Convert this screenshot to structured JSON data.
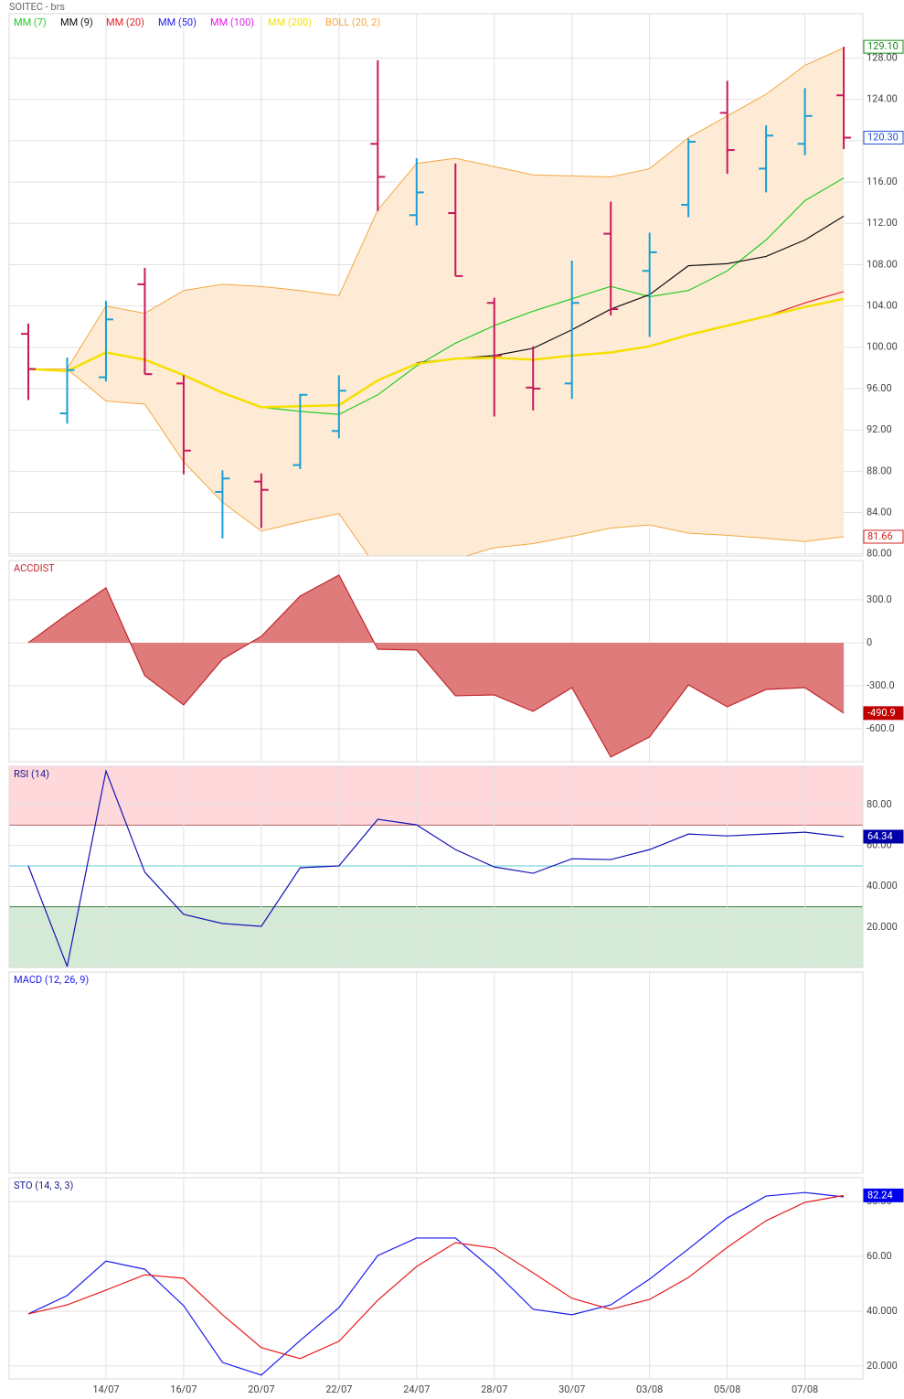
{
  "chart_data": [
    {
      "type": "ohlc",
      "title": "SOITEC - brs",
      "up_color": "#1a9fd0",
      "down_color": "#c8185a",
      "open": [
        101.3,
        93.6,
        97.1,
        106.1,
        96.5,
        86.0,
        87.0,
        88.6,
        91.9,
        119.7,
        112.8,
        113.0,
        104.3,
        96.1,
        96.5,
        111.0,
        107.4,
        113.8,
        122.7,
        117.3,
        119.7,
        124.4
      ],
      "high": [
        102.3,
        99.0,
        104.5,
        107.7,
        97.3,
        88.1,
        87.8,
        95.5,
        97.3,
        127.8,
        118.3,
        117.8,
        104.8,
        100.1,
        108.4,
        114.1,
        111.1,
        120.2,
        125.8,
        121.5,
        125.1,
        129.1
      ],
      "low": [
        94.9,
        92.6,
        96.7,
        97.4,
        87.7,
        81.5,
        82.5,
        88.2,
        91.2,
        113.2,
        111.8,
        106.9,
        93.3,
        93.9,
        95.0,
        103.1,
        101.0,
        112.6,
        116.8,
        115.0,
        118.6,
        119.2
      ],
      "close": [
        97.9,
        97.8,
        102.7,
        97.4,
        90.0,
        87.3,
        86.2,
        95.4,
        95.8,
        116.5,
        115.0,
        106.9,
        99.2,
        96.0,
        104.3,
        103.7,
        109.2,
        119.9,
        119.1,
        120.5,
        122.4,
        120.3
      ],
      "series": [
        {
          "name": "MM (7)",
          "color": "#22cc22",
          "values": [
            null,
            null,
            null,
            null,
            null,
            null,
            94.2,
            93.8,
            93.5,
            95.4,
            98.2,
            100.4,
            102.1,
            103.5,
            104.7,
            105.9,
            104.9,
            105.5,
            107.4,
            110.4,
            114.2,
            116.4
          ]
        },
        {
          "name": "MM (9)",
          "color": "#111111",
          "values": [
            null,
            null,
            null,
            null,
            null,
            null,
            null,
            null,
            null,
            null,
            98.5,
            98.9,
            99.2,
            99.9,
            101.7,
            103.7,
            105.1,
            107.9,
            108.1,
            108.8,
            110.4,
            112.7
          ]
        },
        {
          "name": "MM (20)",
          "color": "#e8202a",
          "values": [
            null,
            null,
            null,
            null,
            null,
            null,
            null,
            null,
            null,
            null,
            null,
            null,
            null,
            null,
            null,
            null,
            null,
            null,
            null,
            103.0,
            104.3,
            105.4
          ]
        },
        {
          "name": "MM (50)",
          "color": "#2222ee"
        },
        {
          "name": "MM (100)",
          "color": "#e020e0"
        },
        {
          "name": "MM (200)",
          "color": "#f5e000",
          "values": [
            97.9,
            97.7,
            99.5,
            98.8,
            97.3,
            95.6,
            94.2,
            94.3,
            94.4,
            96.8,
            98.4,
            98.9,
            99.0,
            98.8,
            99.2,
            99.5,
            100.1,
            101.2,
            102.1,
            103.0,
            103.9,
            104.7
          ]
        }
      ],
      "bands": {
        "name": "BOLL (20, 2)",
        "color": "#f4a742",
        "fill": "#fdebd6",
        "upper": [
          97.9,
          97.9,
          104.0,
          103.3,
          105.5,
          106.1,
          105.9,
          105.5,
          105.0,
          113.3,
          117.8,
          118.3,
          117.5,
          116.7,
          116.6,
          116.5,
          117.3,
          120.3,
          122.4,
          124.5,
          127.3,
          129.0
        ],
        "lower": [
          97.9,
          97.9,
          94.8,
          94.5,
          88.9,
          85.0,
          82.2,
          83.1,
          83.9,
          78.5,
          77.5,
          79.5,
          80.6,
          81.0,
          81.7,
          82.5,
          82.8,
          82.0,
          81.8,
          81.5,
          81.2,
          81.66
        ]
      },
      "ylim": [
        79.8,
        132.3
      ],
      "yticks": [
        {
          "value": 80,
          "label": "80.00"
        },
        {
          "value": 84,
          "label": "84.00"
        },
        {
          "value": 88,
          "label": "88.00"
        },
        {
          "value": 92,
          "label": "92.00"
        },
        {
          "value": 96,
          "label": "96.00"
        },
        {
          "value": 100,
          "label": "100.00"
        },
        {
          "value": 104,
          "label": "104.00"
        },
        {
          "value": 108,
          "label": "108.00"
        },
        {
          "value": 112,
          "label": "112.00"
        },
        {
          "value": 116,
          "label": "116.00"
        },
        {
          "value": 120,
          "label": "120.00"
        },
        {
          "value": 124,
          "label": "124.00"
        },
        {
          "value": 128,
          "label": "128.00"
        }
      ],
      "markers": [
        {
          "value": 129.1,
          "label": "129.10",
          "color": "#1a8a1a",
          "filled": false
        },
        {
          "value": 120.3,
          "label": "120.30",
          "color": "#2050d0",
          "filled": false
        },
        {
          "value": 81.66,
          "label": "81.66",
          "color": "#d02020",
          "filled": false
        }
      ]
    },
    {
      "type": "area",
      "title": "ACCDIST",
      "color": "#c0272d",
      "fill": "#e07b7b",
      "values": [
        0,
        198,
        383,
        -230,
        -434,
        -115,
        45,
        326,
        472,
        -45,
        -51,
        -370,
        -364,
        -479,
        -313,
        -798,
        -657,
        -294,
        -447,
        -326,
        -313,
        -490.9
      ],
      "ylim": [
        -830,
        574
      ],
      "yticks": [
        {
          "value": 300,
          "label": "300.0"
        },
        0,
        {
          "value": -300,
          "label": "-300.0"
        },
        {
          "value": -600,
          "label": "-600.0"
        }
      ],
      "markers": [
        {
          "value": -490.9,
          "label": "-490.9",
          "color": "#c00000",
          "filled": true
        }
      ]
    },
    {
      "type": "line",
      "title": "RSI (14)",
      "series": [
        {
          "color": "#1414b4",
          "values": [
            50,
            0.8,
            96.5,
            46.9,
            26.3,
            21.8,
            20.4,
            49.1,
            50,
            72.8,
            70.1,
            58.0,
            49.5,
            46.4,
            53.5,
            53.1,
            58.0,
            65.6,
            64.7,
            65.6,
            66.5,
            64.34
          ]
        }
      ],
      "overbought": 70,
      "oversold": 30,
      "midline": 50,
      "ylim": [
        0.3,
        98.8
      ],
      "yticks": [
        {
          "value": 80,
          "label": "80.00"
        },
        {
          "value": 60,
          "label": "60.00"
        },
        {
          "value": 40,
          "label": "40.000"
        },
        {
          "value": 20,
          "label": "20.000"
        }
      ],
      "markers": [
        {
          "value": 64.34,
          "label": "64.34",
          "color": "#0000aa",
          "filled": true
        }
      ]
    },
    {
      "type": "line",
      "title": "MACD (12, 26, 9)",
      "series": []
    },
    {
      "type": "line",
      "title": "STO (14, 3, 3)",
      "categories": [
        null,
        null,
        "14/07",
        null,
        "16/07",
        null,
        "20/07",
        null,
        "22/07",
        null,
        "24/07",
        null,
        "28/07",
        null,
        "30/07",
        null,
        "03/08",
        null,
        "05/08",
        null,
        "07/08",
        null
      ],
      "series": [
        {
          "color": "#1a1aee",
          "values": [
            39.0,
            45.7,
            58.3,
            55.3,
            42.0,
            21.3,
            16.7,
            29.3,
            41.3,
            60.3,
            66.7,
            66.7,
            54.7,
            40.7,
            38.7,
            42.3,
            51.7,
            62.7,
            74.0,
            82.0,
            83.3,
            81.7
          ]
        },
        {
          "color": "#e81c1c",
          "values": [
            39.0,
            42.3,
            47.7,
            53.3,
            52.0,
            38.7,
            26.7,
            22.7,
            29.0,
            44.0,
            56.3,
            65.0,
            63.0,
            54.0,
            44.7,
            40.7,
            44.3,
            52.3,
            63.3,
            73.0,
            79.7,
            82.24
          ]
        }
      ],
      "ylim": [
        15.3,
        88.7
      ],
      "yticks": [
        {
          "value": 80,
          "label": "80.00"
        },
        {
          "value": 60,
          "label": "60.00"
        },
        {
          "value": 40,
          "label": "40.000"
        },
        {
          "value": 20,
          "label": "20.000"
        }
      ],
      "markers": [
        {
          "value": 82.24,
          "label": "82.24",
          "color": "#0000ee",
          "filled": true
        }
      ]
    }
  ]
}
